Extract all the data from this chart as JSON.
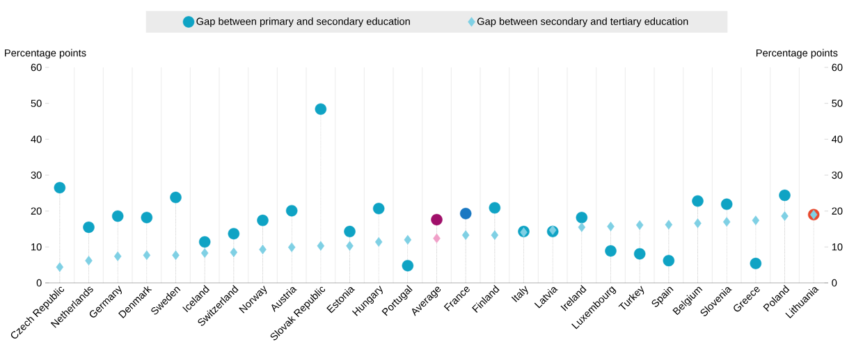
{
  "chart_data": {
    "type": "scatter",
    "categories": [
      "Czech Republic",
      "Netherlands",
      "Germany",
      "Denmark",
      "Sweden",
      "Iceland",
      "Switzerland",
      "Norway",
      "Austria",
      "Slovak Republic",
      "Estonia",
      "Hungary",
      "Portugal",
      "Average",
      "France",
      "Finland",
      "Italy",
      "Latvia",
      "Ireland",
      "Luxembourg",
      "Turkey",
      "Spain",
      "Belgium",
      "Slovenia",
      "Greece",
      "Poland",
      "Lithuania"
    ],
    "series": [
      {
        "name": "Gap between primary and secondary education",
        "color": "#0fa3c4",
        "marker": "circle",
        "colors": [
          "#0fa3c4",
          "#0fa3c4",
          "#0fa3c4",
          "#0fa3c4",
          "#0fa3c4",
          "#0fa3c4",
          "#0fa3c4",
          "#0fa3c4",
          "#0fa3c4",
          "#0fa3c4",
          "#0fa3c4",
          "#0fa3c4",
          "#0fa3c4",
          "#a0106a",
          "#1a78c2",
          "#0fa3c4",
          "#0fa3c4",
          "#0fa3c4",
          "#0fa3c4",
          "#0fa3c4",
          "#0fa3c4",
          "#0fa3c4",
          "#0fa3c4",
          "#0fa3c4",
          "#0fa3c4",
          "#0fa3c4",
          "#e8482c"
        ],
        "values": [
          26.5,
          15.5,
          18.6,
          18.2,
          23.8,
          11.4,
          13.7,
          17.4,
          20.1,
          48.4,
          14.3,
          20.7,
          4.8,
          17.6,
          19.3,
          20.9,
          14.3,
          14.3,
          18.2,
          8.9,
          8.1,
          6.2,
          22.8,
          21.9,
          5.4,
          24.4,
          19.0
        ]
      },
      {
        "name": "Gap between secondary and tertiary education",
        "color": "#7fd0e4",
        "marker": "diamond",
        "colors": [
          "#7fd0e4",
          "#7fd0e4",
          "#7fd0e4",
          "#7fd0e4",
          "#7fd0e4",
          "#7fd0e4",
          "#7fd0e4",
          "#7fd0e4",
          "#7fd0e4",
          "#7fd0e4",
          "#7fd0e4",
          "#7fd0e4",
          "#7fd0e4",
          "#f0a0c8",
          "#7fd0e4",
          "#7fd0e4",
          "#7fd0e4",
          "#7fd0e4",
          "#7fd0e4",
          "#7fd0e4",
          "#7fd0e4",
          "#7fd0e4",
          "#7fd0e4",
          "#7fd0e4",
          "#7fd0e4",
          "#7fd0e4",
          "#7fd0e4"
        ],
        "values": [
          4.4,
          6.2,
          7.4,
          7.7,
          7.7,
          8.3,
          8.5,
          9.3,
          9.9,
          10.3,
          10.3,
          11.4,
          12.0,
          12.4,
          13.3,
          13.3,
          14.1,
          14.7,
          15.5,
          15.7,
          16.1,
          16.2,
          16.6,
          17.0,
          17.4,
          18.6,
          19.0
        ]
      }
    ],
    "ylabel": "Percentage points",
    "y2label": "Percentage points",
    "ylim": [
      0,
      60
    ],
    "yticks": [
      0,
      10,
      20,
      30,
      40,
      50,
      60
    ],
    "y2lim": [
      0,
      60
    ],
    "y2ticks": [
      0,
      10,
      20,
      30,
      40,
      50,
      60
    ],
    "grid": "x",
    "legend": "top"
  }
}
